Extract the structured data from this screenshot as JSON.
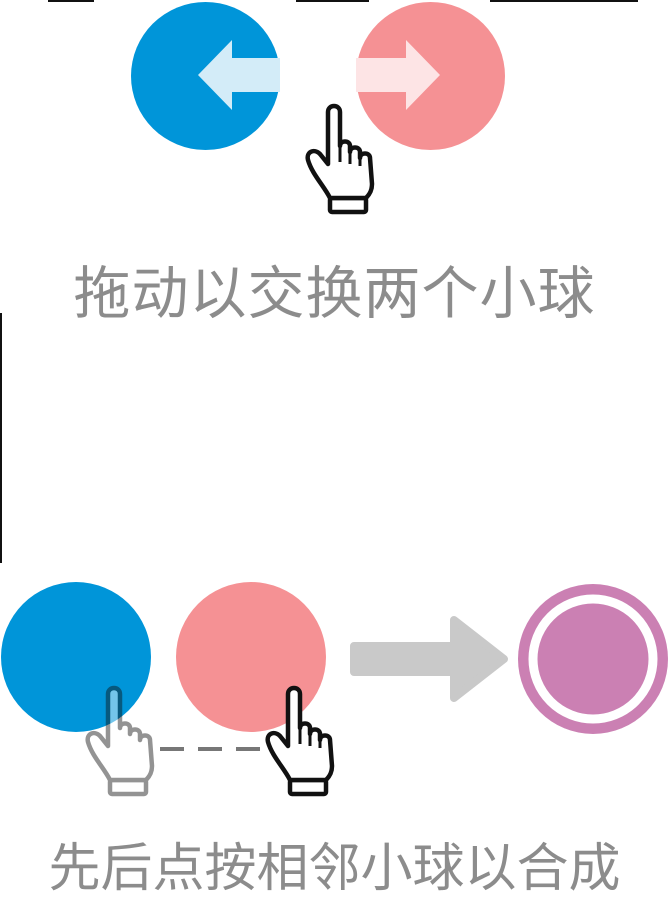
{
  "colors": {
    "blue": "#0095d9",
    "pink": "#f59194",
    "merged": "#cb80b3",
    "arrow_gray": "#c9c9c9",
    "text_gray": "#8c8c8c"
  },
  "swap_tutorial": {
    "caption": "拖动以交换两个小球",
    "left_ball_icon": "arrow-left-icon",
    "right_ball_icon": "arrow-right-icon",
    "hand_icon": "pointing-hand-icon"
  },
  "merge_tutorial": {
    "caption": "先后点按相邻小球以合成",
    "first_tap_icon": "pointing-hand-icon",
    "second_tap_icon": "pointing-hand-icon",
    "result_icon": "merged-ball-icon"
  }
}
